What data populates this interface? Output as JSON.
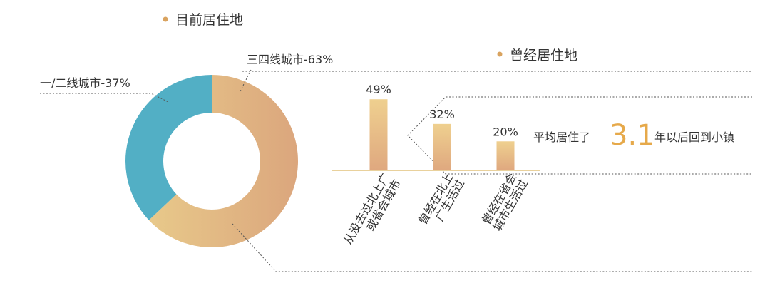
{
  "charts": {
    "current": {
      "title": "目前居住地",
      "chart_data": {
        "type": "pie",
        "slices": [
          {
            "label": "三四线城市-63%",
            "value": 63,
            "color_from": "#e8c98a",
            "color_to": "#dba67d"
          },
          {
            "label": "一/二线城市-37%",
            "value": 37,
            "color": "#52afc5"
          }
        ],
        "donut": true
      }
    },
    "former": {
      "title": "曾经居住地",
      "chart_data": {
        "type": "bar",
        "categories": [
          [
            "从没去过北上广",
            "或省会城市"
          ],
          [
            "曾经在北上",
            "广生活过"
          ],
          [
            "曾经在省会",
            "城市生活过"
          ]
        ],
        "values": [
          49,
          32,
          20
        ],
        "value_labels": [
          "49%",
          "32%",
          "20%"
        ],
        "ylim": [
          0,
          55
        ]
      }
    },
    "callout": {
      "prefix": "平均居住了",
      "value": "3.1",
      "suffix": "年以后回到小镇"
    }
  },
  "colors": {
    "bullet": "#d9a35f",
    "accent": "#e6a94a",
    "bar_top": "#efd08f",
    "bar_bottom": "#dfa87f",
    "axis": "#e2c27c",
    "leader": "#555555"
  }
}
